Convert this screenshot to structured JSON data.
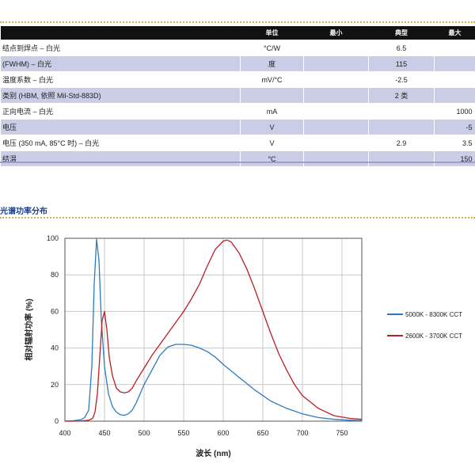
{
  "table": {
    "headers": [
      "",
      "单位",
      "最小",
      "典型",
      "最大"
    ],
    "rows": [
      {
        "param": "结点到焊点 – 白光",
        "unit": "°C/W",
        "min": "",
        "typ": "6.5",
        "max": ""
      },
      {
        "param": "(FWHM) – 白光",
        "unit": "度",
        "min": "",
        "typ": "115",
        "max": ""
      },
      {
        "param": "温度系数 – 白光",
        "unit": "mV/°C",
        "min": "",
        "typ": "-2.5",
        "max": ""
      },
      {
        "param": "类别 (HBM, 依照 Mil-Std-883D)",
        "unit": "",
        "min": "",
        "typ": "2 类",
        "max": ""
      },
      {
        "param": "正向电流 – 白光",
        "unit": "mA",
        "min": "",
        "typ": "",
        "max": "1000"
      },
      {
        "param": "电压",
        "unit": "V",
        "min": "",
        "typ": "",
        "max": "-5"
      },
      {
        "param": "电压 (350 mA, 85°C 时) – 白光",
        "unit": "V",
        "min": "",
        "typ": "2.9",
        "max": "3.5"
      },
      {
        "param": "结温",
        "unit": "°C",
        "min": "",
        "typ": "",
        "max": "150"
      }
    ]
  },
  "section": {
    "title": "光谱功率分布"
  },
  "chart_data": {
    "type": "line",
    "title": "",
    "xlabel": "波长 (nm)",
    "ylabel": "相对辐射功率 (%)",
    "xlim": [
      400,
      775
    ],
    "ylim": [
      0,
      100
    ],
    "xticks": [
      400,
      450,
      500,
      550,
      600,
      650,
      700,
      750
    ],
    "yticks": [
      0,
      20,
      40,
      60,
      80,
      100
    ],
    "grid": true,
    "legend_position": "right",
    "series": [
      {
        "name": "5000K - 8300K CCT",
        "color": "#2c7bbf",
        "x": [
          400,
          410,
          420,
          425,
          430,
          434,
          437,
          440,
          443,
          446,
          450,
          455,
          460,
          465,
          470,
          475,
          480,
          485,
          490,
          495,
          500,
          510,
          520,
          530,
          540,
          550,
          560,
          570,
          580,
          590,
          600,
          620,
          640,
          660,
          680,
          700,
          720,
          740,
          760,
          775
        ],
        "y": [
          0,
          0.2,
          0.8,
          2,
          6,
          30,
          75,
          99.5,
          88,
          55,
          30,
          15,
          8,
          5,
          3.5,
          3.2,
          4,
          6,
          10,
          15,
          20,
          28,
          36,
          40.5,
          42,
          42,
          41.5,
          40,
          38,
          35,
          31,
          24,
          17,
          11,
          7,
          4,
          2,
          1,
          0.5,
          0.3
        ]
      },
      {
        "name": "2600K - 3700K CCT",
        "color": "#b91f24",
        "x": [
          400,
          420,
          430,
          435,
          438,
          441,
          444,
          447,
          450,
          453,
          456,
          460,
          465,
          470,
          475,
          480,
          485,
          490,
          500,
          510,
          520,
          530,
          540,
          550,
          560,
          570,
          580,
          590,
          600,
          605,
          610,
          620,
          630,
          640,
          650,
          660,
          670,
          680,
          690,
          700,
          720,
          740,
          760,
          775
        ],
        "y": [
          0,
          0.1,
          0.5,
          1.5,
          5,
          15,
          35,
          55,
          60,
          50,
          35,
          25,
          18,
          16,
          15.5,
          16,
          18,
          22,
          29,
          36,
          42,
          48,
          54,
          60,
          67,
          75,
          85,
          94,
          98.5,
          99,
          98,
          92,
          83,
          72,
          60,
          48,
          37,
          28,
          20,
          14,
          7,
          3,
          1.5,
          1
        ]
      }
    ]
  }
}
